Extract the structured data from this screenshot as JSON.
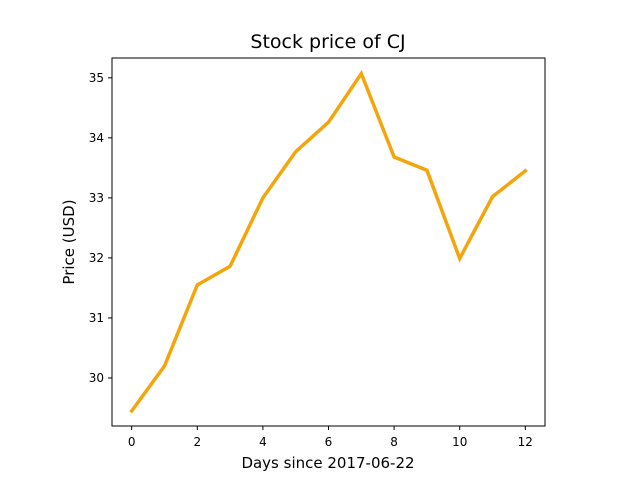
{
  "chart_data": {
    "type": "line",
    "title": "Stock price of CJ",
    "xlabel": "Days since 2017-06-22",
    "ylabel": "Price (USD)",
    "xlim": [
      -0.6,
      12.6
    ],
    "ylim": [
      29.2,
      35.33
    ],
    "x_ticks": [
      0,
      2,
      4,
      6,
      8,
      10,
      12
    ],
    "y_ticks": [
      30,
      31,
      32,
      33,
      34,
      35
    ],
    "grid": false,
    "legend": "none",
    "series": [
      {
        "color": "#f5a50c",
        "x": [
          0,
          1,
          2,
          3,
          4,
          5,
          6,
          7,
          8,
          9,
          10,
          11,
          12
        ],
        "values": [
          29.45,
          30.2,
          31.55,
          31.86,
          33.0,
          33.77,
          34.26,
          35.07,
          33.68,
          33.46,
          31.99,
          33.02,
          33.45
        ]
      }
    ]
  }
}
